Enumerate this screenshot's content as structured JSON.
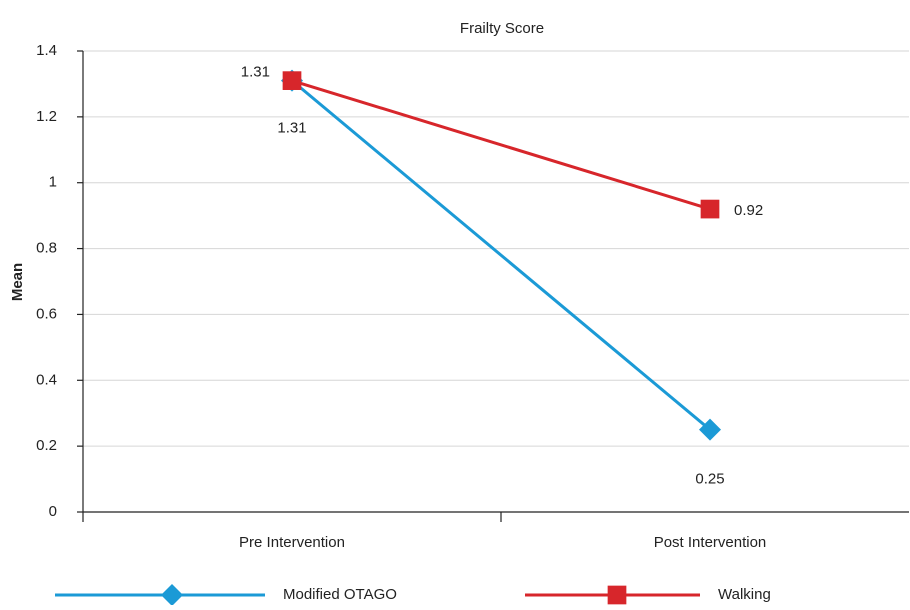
{
  "chart_data": {
    "type": "line",
    "title": "Frailty Score",
    "y_label": "Mean",
    "categories": [
      "Pre Intervention",
      "Post Intervention"
    ],
    "series": [
      {
        "name": "Modified OTAGO",
        "color": "#1b9ad6",
        "marker": "diamond",
        "values": [
          1.31,
          0.25
        ]
      },
      {
        "name": "Walking",
        "color": "#d7262b",
        "marker": "square",
        "values": [
          1.31,
          0.92
        ]
      }
    ],
    "ylim": [
      0,
      1.4
    ],
    "yticks": [
      0,
      0.2,
      0.4,
      0.6,
      0.8,
      1,
      1.2,
      1.4
    ],
    "grid": true,
    "legend": "bottom"
  }
}
